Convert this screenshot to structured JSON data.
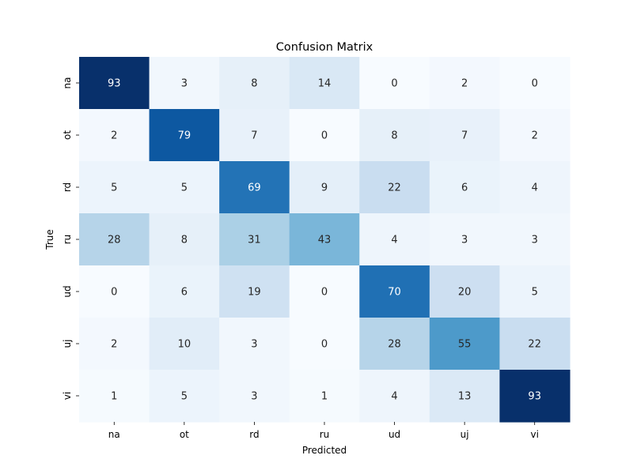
{
  "chart_data": {
    "type": "heatmap",
    "title": "Confusion Matrix",
    "xlabel": "Predicted",
    "ylabel": "True",
    "x_categories": [
      "na",
      "ot",
      "rd",
      "ru",
      "ud",
      "uj",
      "vi"
    ],
    "y_categories": [
      "na",
      "ot",
      "rd",
      "ru",
      "ud",
      "uj",
      "vi"
    ],
    "values": [
      [
        93,
        3,
        8,
        14,
        0,
        2,
        0
      ],
      [
        2,
        79,
        7,
        0,
        8,
        7,
        2
      ],
      [
        5,
        5,
        69,
        9,
        22,
        6,
        4
      ],
      [
        28,
        8,
        31,
        43,
        4,
        3,
        3
      ],
      [
        0,
        6,
        19,
        0,
        70,
        20,
        5
      ],
      [
        2,
        10,
        3,
        0,
        28,
        55,
        22
      ],
      [
        1,
        5,
        3,
        1,
        4,
        13,
        93
      ]
    ],
    "colormap": "Blues",
    "vmin": 0,
    "vmax": 93,
    "colorbar": false,
    "grid": false
  }
}
